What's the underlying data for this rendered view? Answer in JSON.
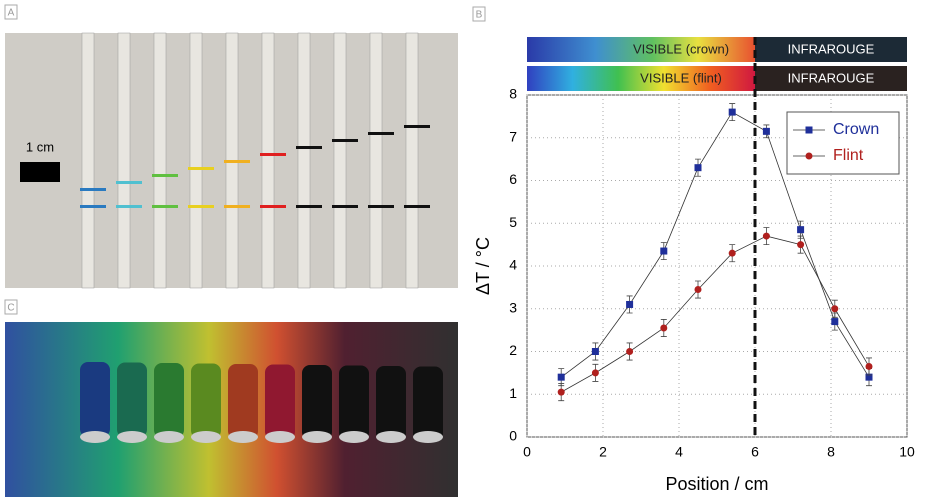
{
  "panels": {
    "a": "A",
    "b": "B",
    "c": "C"
  },
  "scale_bar": "1 cm",
  "chart_data": {
    "type": "line",
    "bands": [
      [
        "VISIBLE (crown)",
        "INFRAROUGE"
      ],
      [
        "VISIBLE (flint)",
        "INFRAROUGE"
      ]
    ],
    "x_label": "Position / cm",
    "y_label": "ΔT / °C",
    "x": [
      0.9,
      1.8,
      2.7,
      3.6,
      4.5,
      5.4,
      6.3,
      7.2,
      8.1,
      9.0
    ],
    "series": [
      {
        "name": "Crown",
        "color": "#1f2f9a",
        "marker": "square",
        "values": [
          1.4,
          2.0,
          3.1,
          4.35,
          6.3,
          7.6,
          7.15,
          4.85,
          2.7,
          1.4
        ],
        "errors": [
          0.2,
          0.2,
          0.2,
          0.2,
          0.2,
          0.2,
          0.15,
          0.2,
          0.2,
          0.2
        ]
      },
      {
        "name": "Flint",
        "color": "#b0201e",
        "marker": "circle",
        "values": [
          1.05,
          1.5,
          2.0,
          2.55,
          3.45,
          4.3,
          4.7,
          4.5,
          3.0,
          1.65
        ],
        "errors": [
          0.2,
          0.2,
          0.2,
          0.2,
          0.2,
          0.2,
          0.2,
          0.2,
          0.2,
          0.2
        ]
      }
    ],
    "vline": 6,
    "xlim": [
      0,
      10
    ],
    "xticks": [
      0,
      2,
      4,
      6,
      8,
      10
    ],
    "ylim": [
      0,
      8
    ],
    "yticks": [
      0,
      1,
      2,
      3,
      4,
      5,
      6,
      7,
      8
    ],
    "grid": true,
    "legend": "top-right",
    "line_color": "#333333"
  }
}
